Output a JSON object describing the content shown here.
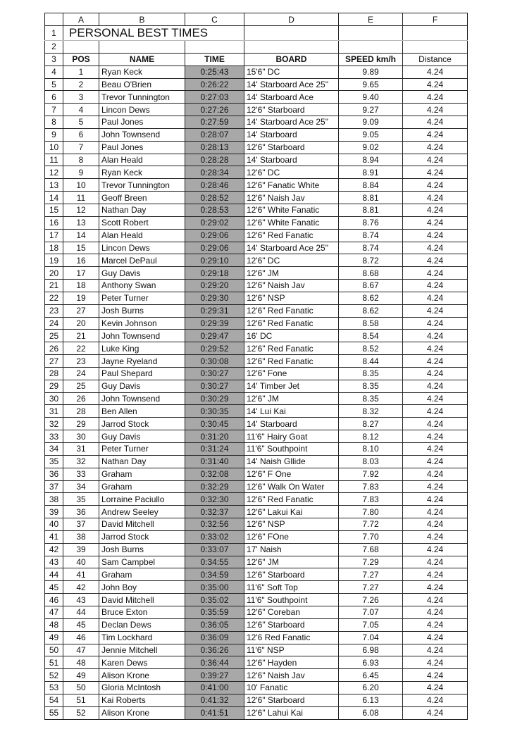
{
  "columns": [
    "A",
    "B",
    "C",
    "D",
    "E",
    "F"
  ],
  "title": "PERSONAL BEST TIMES",
  "headers": [
    "POS",
    "NAME",
    "TIME",
    "BOARD",
    "SPEED km/h",
    "Distance"
  ],
  "rows": [
    [
      "1",
      "Ryan Keck",
      "0:25:43",
      "15'6\" DC",
      "9.89",
      "4.24"
    ],
    [
      "2",
      "Beau O'Brien",
      "0:26:22",
      "14' Starboard Ace 25\"",
      "9.65",
      "4.24"
    ],
    [
      "3",
      "Trevor Tunnington",
      "0:27:03",
      "14' Starboard Ace",
      "9.40",
      "4.24"
    ],
    [
      "4",
      "Lincon Dews",
      "0:27:26",
      "12'6\" Starboard",
      "9.27",
      "4.24"
    ],
    [
      "5",
      "Paul Jones",
      "0:27:59",
      "14' Starboard Ace 25\"",
      "9.09",
      "4.24"
    ],
    [
      "6",
      "John Townsend",
      "0:28:07",
      "14' Starboard",
      "9.05",
      "4.24"
    ],
    [
      "7",
      "Paul Jones",
      "0:28:13",
      "12'6\" Starboard",
      "9.02",
      "4.24"
    ],
    [
      "8",
      "Alan Heald",
      "0:28:28",
      "14' Starboard",
      "8.94",
      "4.24"
    ],
    [
      "9",
      "Ryan Keck",
      "0:28:34",
      "12'6\" DC",
      "8.91",
      "4.24"
    ],
    [
      "10",
      "Trevor Tunnington",
      "0:28:46",
      "12'6\" Fanatic White",
      "8.84",
      "4.24"
    ],
    [
      "11",
      "Geoff Breen",
      "0:28:52",
      "12'6\" Naish Jav",
      "8.81",
      "4.24"
    ],
    [
      "12",
      "Nathan Day",
      "0:28:53",
      "12'6\" White Fanatic",
      "8.81",
      "4.24"
    ],
    [
      "13",
      "Scott Robert",
      "0:29:02",
      "12'6\"  White Fanatic",
      "8.76",
      "4.24"
    ],
    [
      "14",
      "Alan Heald",
      "0:29:06",
      "12'6\" Red Fanatic",
      "8.74",
      "4.24"
    ],
    [
      "15",
      "Lincon Dews",
      "0:29:06",
      "14' Starboard Ace 25\"",
      "8.74",
      "4.24"
    ],
    [
      "16",
      "Marcel DePaul",
      "0:29:10",
      "12'6\" DC",
      "8.72",
      "4.24"
    ],
    [
      "17",
      "Guy Davis",
      "0:29:18",
      "12'6\" JM",
      "8.68",
      "4.24"
    ],
    [
      "18",
      "Anthony Swan",
      "0:29:20",
      "12'6\" Naish Jav",
      "8.67",
      "4.24"
    ],
    [
      "19",
      "Peter Turner",
      "0:29:30",
      "12'6\" NSP",
      "8.62",
      "4.24"
    ],
    [
      "27",
      "Josh Burns",
      "0:29:31",
      "12'6\"  Red Fanatic",
      "8.62",
      "4.24"
    ],
    [
      "20",
      "Kevin Johnson",
      "0:29:39",
      "12'6\" Red Fanatic",
      "8.58",
      "4.24"
    ],
    [
      "21",
      "John Townsend",
      "0:29:47",
      "16' DC",
      "8.54",
      "4.24"
    ],
    [
      "22",
      "Luke King",
      "0:29:52",
      "12'6\" Red Fanatic",
      "8.52",
      "4.24"
    ],
    [
      "23",
      "Jayne Ryeland",
      "0:30:08",
      "12'6\" Red Fanatic",
      "8.44",
      "4.24"
    ],
    [
      "24",
      "Paul Shepard",
      "0:30:27",
      "12'6\" Fone",
      "8.35",
      "4.24"
    ],
    [
      "25",
      "Guy Davis",
      "0:30:27",
      "14' Timber Jet",
      "8.35",
      "4.24"
    ],
    [
      "26",
      "John Townsend",
      "0:30:29",
      "12'6\" JM",
      "8.35",
      "4.24"
    ],
    [
      "28",
      "Ben Allen",
      "0:30:35",
      "14' Lui Kai",
      "8.32",
      "4.24"
    ],
    [
      "29",
      "Jarrod Stock",
      "0:30:45",
      "14' Starboard",
      "8.27",
      "4.24"
    ],
    [
      "30",
      "Guy Davis",
      "0:31:20",
      "11'6\" Hairy Goat",
      "8.12",
      "4.24"
    ],
    [
      "31",
      "Peter Turner",
      "0:31:24",
      "11'6\" Southpoint",
      "8.10",
      "4.24"
    ],
    [
      "32",
      "Nathan Day",
      "0:31:40",
      "14' Naish Gllide",
      "8.03",
      "4.24"
    ],
    [
      "33",
      "Graham",
      "0:32:08",
      "12'6\" F One",
      "7.92",
      "4.24"
    ],
    [
      "34",
      "Graham",
      "0:32:29",
      "12'6\" Walk On Water",
      "7.83",
      "4.24"
    ],
    [
      "35",
      "Lorraine Paciullo",
      "0:32:30",
      "12'6\" Red Fanatic",
      "7.83",
      "4.24"
    ],
    [
      "36",
      "Andrew Seeley",
      "0:32:37",
      "12'6\" Lakui Kai",
      "7.80",
      "4.24"
    ],
    [
      "37",
      "David Mitchell",
      "0:32:56",
      "12'6\" NSP",
      "7.72",
      "4.24"
    ],
    [
      "38",
      "Jarrod Stock",
      "0:33:02",
      "12'6\" FOne",
      "7.70",
      "4.24"
    ],
    [
      "39",
      "Josh Burns",
      "0:33:07",
      "17' Naish",
      "7.68",
      "4.24"
    ],
    [
      "40",
      "Sam Campbel",
      "0:34:55",
      "12'6\" JM",
      "7.29",
      "4.24"
    ],
    [
      "41",
      "Graham",
      "0:34:59",
      "12'6\" Starboard",
      "7.27",
      "4.24"
    ],
    [
      "42",
      "John Boy",
      "0:35:00",
      "11'6\" Soft Top",
      "7.27",
      "4.24"
    ],
    [
      "43",
      "David Mitchell",
      "0:35:02",
      "11'6\" Southpoint",
      "7.26",
      "4.24"
    ],
    [
      "44",
      "Bruce Exton",
      "0:35:59",
      "12'6\" Coreban",
      "7.07",
      "4.24"
    ],
    [
      "45",
      "Declan Dews",
      "0:36:05",
      "12'6\" Starboard",
      "7.05",
      "4.24"
    ],
    [
      "46",
      "Tim Lockhard",
      "0:36:09",
      "12'6 Red Fanatic",
      "7.04",
      "4.24"
    ],
    [
      "47",
      "Jennie Mitchell",
      "0:36:26",
      "11'6\" NSP",
      "6.98",
      "4.24"
    ],
    [
      "48",
      "Karen Dews",
      "0:36:44",
      "12'6\" Hayden",
      "6.93",
      "4.24"
    ],
    [
      "49",
      "Alison Krone",
      "0:39:27",
      "12'6\" Naish Jav",
      "6.45",
      "4.24"
    ],
    [
      "50",
      "Gloria McIntosh",
      "0:41:00",
      "10' Fanatic",
      "6.20",
      "4.24"
    ],
    [
      "51",
      "Kai Roberts",
      "0:41:32",
      "12'6\" Starboard",
      "6.13",
      "4.24"
    ],
    [
      "52",
      "Alison Krone",
      "0:41:51",
      "12'6\" Lahui Kai",
      "6.08",
      "4.24"
    ]
  ]
}
